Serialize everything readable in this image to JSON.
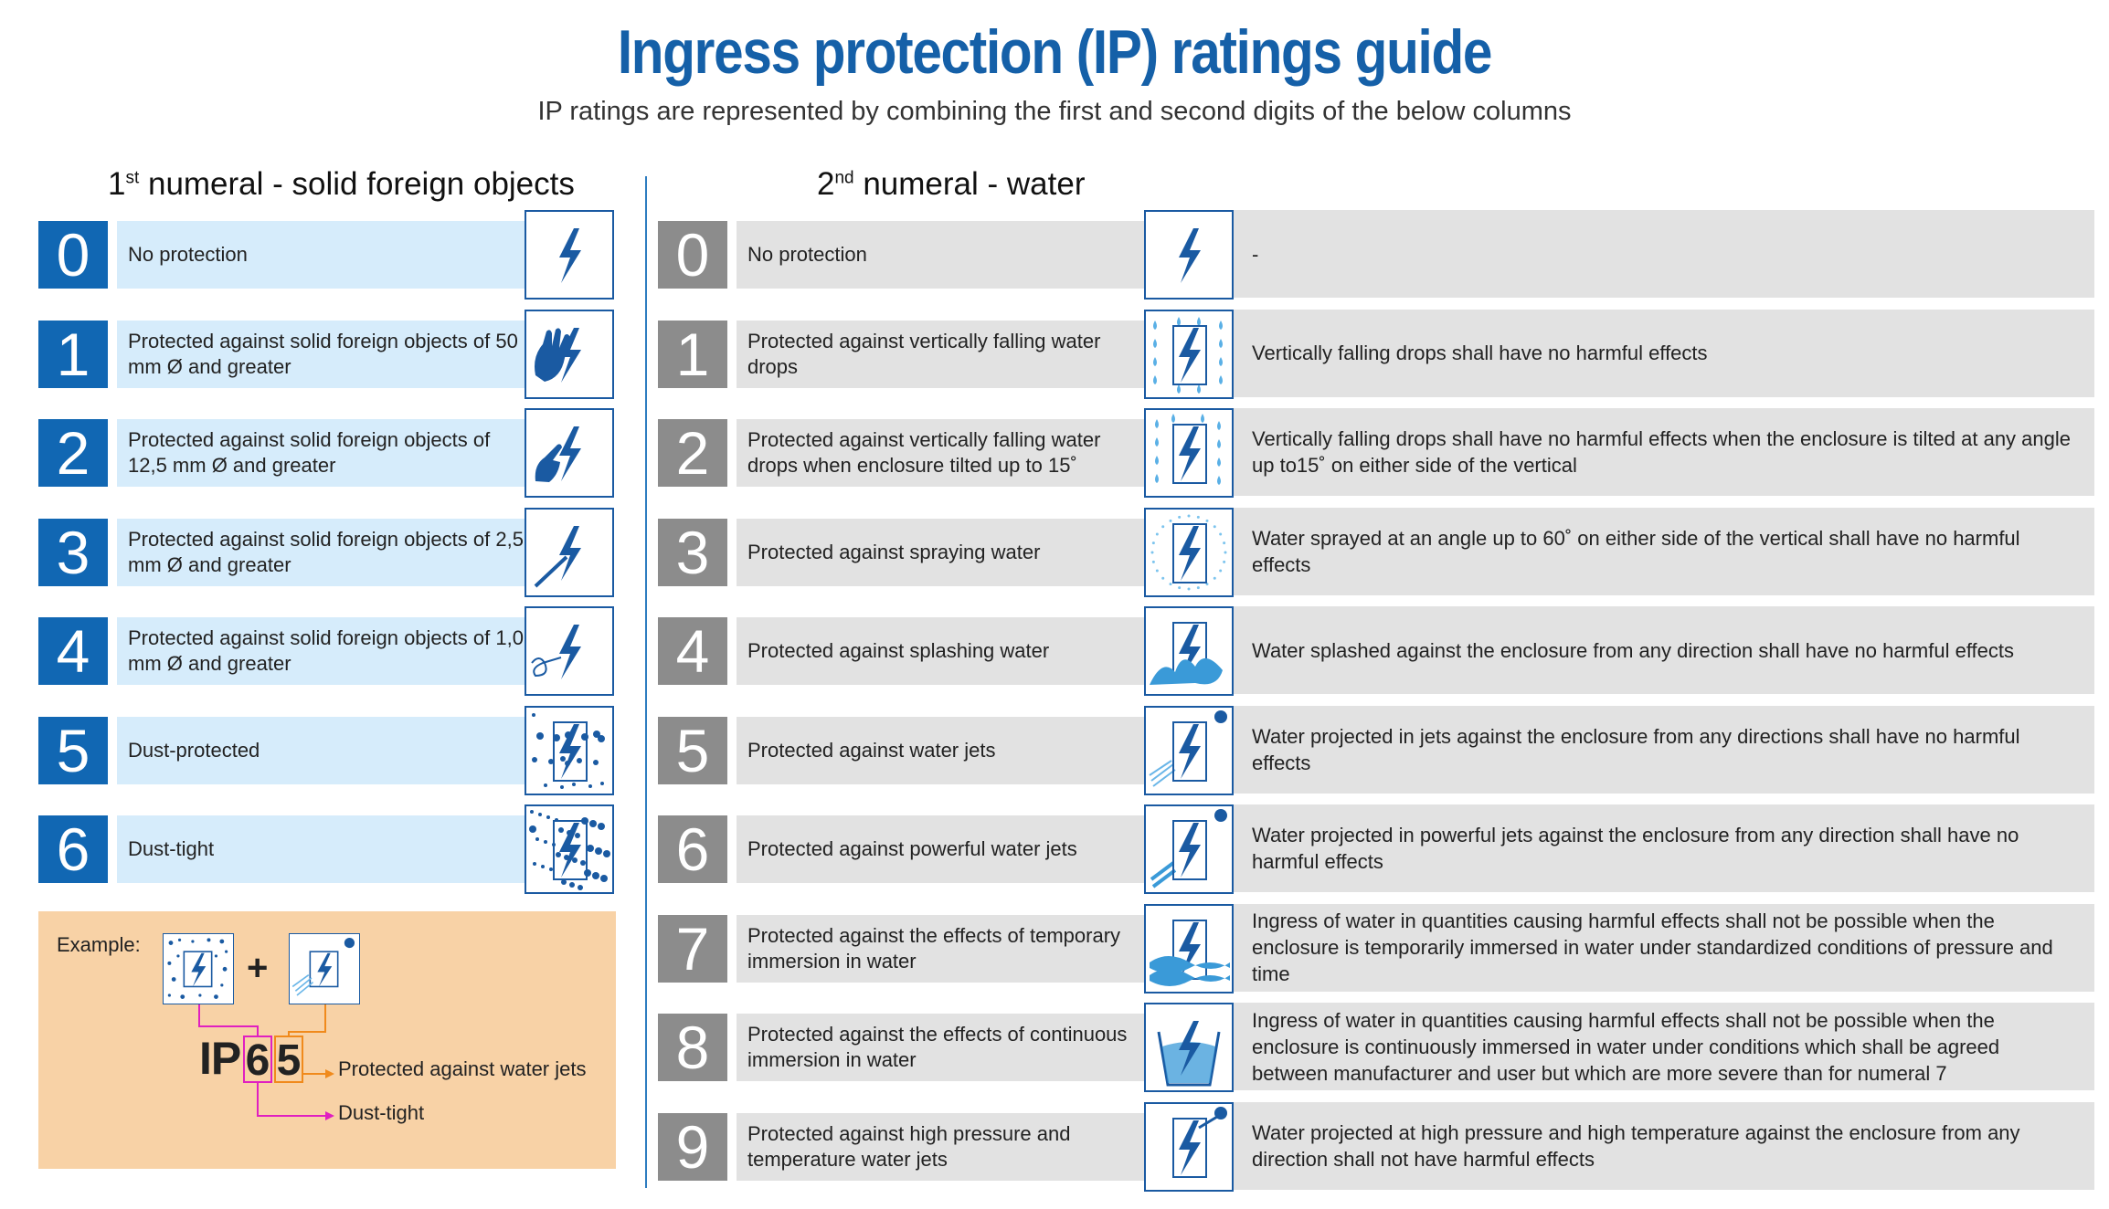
{
  "title": "Ingress protection (IP) ratings guide",
  "subtitle": "IP ratings are represented by combining the first and second digits of the below columns",
  "first_column": {
    "heading_num": "1",
    "heading_sup": "st",
    "heading_text": " numeral - solid foreign objects",
    "accent_color": "#1167b3",
    "rows": [
      {
        "digit": "0",
        "label": "No protection",
        "icon": "lightning-icon"
      },
      {
        "digit": "1",
        "label": "Protected against solid foreign objects of 50 mm Ø and greater",
        "icon": "hand-lightning-icon"
      },
      {
        "digit": "2",
        "label": "Protected against solid foreign objects of 12,5 mm Ø and greater",
        "icon": "finger-lightning-icon"
      },
      {
        "digit": "3",
        "label": "Protected against solid foreign objects of 2,5 mm Ø and greater",
        "icon": "tool-lightning-icon"
      },
      {
        "digit": "4",
        "label": "Protected against solid foreign objects of 1,0 mm Ø and greater",
        "icon": "wire-lightning-icon"
      },
      {
        "digit": "5",
        "label": "Dust-protected",
        "icon": "dust-lightning-icon"
      },
      {
        "digit": "6",
        "label": "Dust-tight",
        "icon": "dust-tight-lightning-icon"
      }
    ]
  },
  "second_column": {
    "heading_num": "2",
    "heading_sup": "nd",
    "heading_text": " numeral - water",
    "accent_color": "#8c8c8c",
    "rows": [
      {
        "digit": "0",
        "label": "No protection",
        "description": "-",
        "icon": "lightning-icon"
      },
      {
        "digit": "1",
        "label": "Protected against vertically falling water drops",
        "description": "Vertically falling drops shall have no harmful effects",
        "icon": "vertical-drops-icon"
      },
      {
        "digit": "2",
        "label": "Protected against vertically falling water drops when enclosure tilted up to 15˚",
        "description": "Vertically falling drops shall have no harmful effects when the enclosure is tilted at any angle up to15˚ on either side of the vertical",
        "icon": "tilted-drops-icon"
      },
      {
        "digit": "3",
        "label": "Protected against spraying water",
        "description": "Water sprayed at an angle up to 60˚ on either side of the vertical shall have no harmful effects",
        "icon": "spray-icon"
      },
      {
        "digit": "4",
        "label": "Protected against splashing water",
        "description": "Water splashed against the enclosure from any direction shall have no harmful effects",
        "icon": "splash-icon"
      },
      {
        "digit": "5",
        "label": "Protected against water jets",
        "description": "Water projected in jets against the enclosure from any directions shall have no harmful effects",
        "icon": "water-jet-icon"
      },
      {
        "digit": "6",
        "label": "Protected against powerful water jets",
        "description": "Water projected in powerful jets against the enclosure from any direction shall have no harmful effects",
        "icon": "powerful-jet-icon"
      },
      {
        "digit": "7",
        "label": "Protected against the effects of temporary immersion in water",
        "description": "Ingress of water in quantities causing harmful effects shall not be possible when the enclosure is temporarily immersed in water under standardized conditions of pressure and time",
        "icon": "temporary-immersion-icon"
      },
      {
        "digit": "8",
        "label": "Protected against the effects of continuous immersion in water",
        "description": "Ingress of water in quantities causing harmful effects shall not be possible when the enclosure is continuously immersed in water under conditions which shall be agreed between manufacturer and user but which are more severe than for numeral 7",
        "icon": "continuous-immersion-icon"
      },
      {
        "digit": "9",
        "label": "Protected against high pressure and temperature water jets",
        "description": "Water projected at high pressure and high temperature against the enclosure from any direction shall not have harmful effects",
        "icon": "high-pressure-jet-icon"
      }
    ]
  },
  "example": {
    "label": "Example:",
    "plus": "+",
    "prefix": "IP",
    "first_digit": "6",
    "second_digit": "5",
    "second_note": "Protected against water jets",
    "first_note": "Dust-tight",
    "background_color": "#f8d2a6"
  },
  "colors": {
    "title": "#1560a8",
    "light_blue_row": "#d6ecfb",
    "grey_row": "#e2e2e2",
    "icon_border": "#1a5aa2",
    "first_digit_highlight": "#e020c0",
    "second_digit_highlight": "#f08a1c"
  }
}
